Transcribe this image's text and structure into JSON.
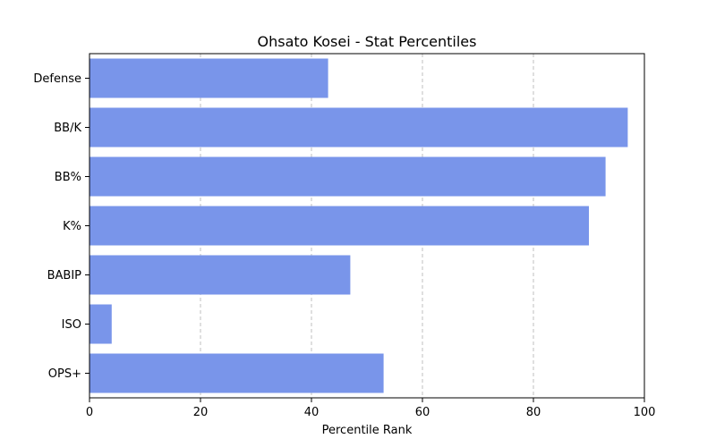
{
  "chart_data": {
    "type": "bar",
    "orientation": "horizontal",
    "title": "Ohsato Kosei - Stat Percentiles",
    "xlabel": "Percentile Rank",
    "ylabel": "",
    "categories": [
      "OPS+",
      "ISO",
      "BABIP",
      "K%",
      "BB%",
      "BB/K",
      "Defense"
    ],
    "values": [
      53,
      4,
      47,
      90,
      93,
      97,
      43
    ],
    "xlim": [
      0,
      100
    ],
    "xticks": [
      0,
      20,
      40,
      60,
      80,
      100
    ],
    "grid": "x-dashed",
    "bar_color": "#7995ea"
  }
}
